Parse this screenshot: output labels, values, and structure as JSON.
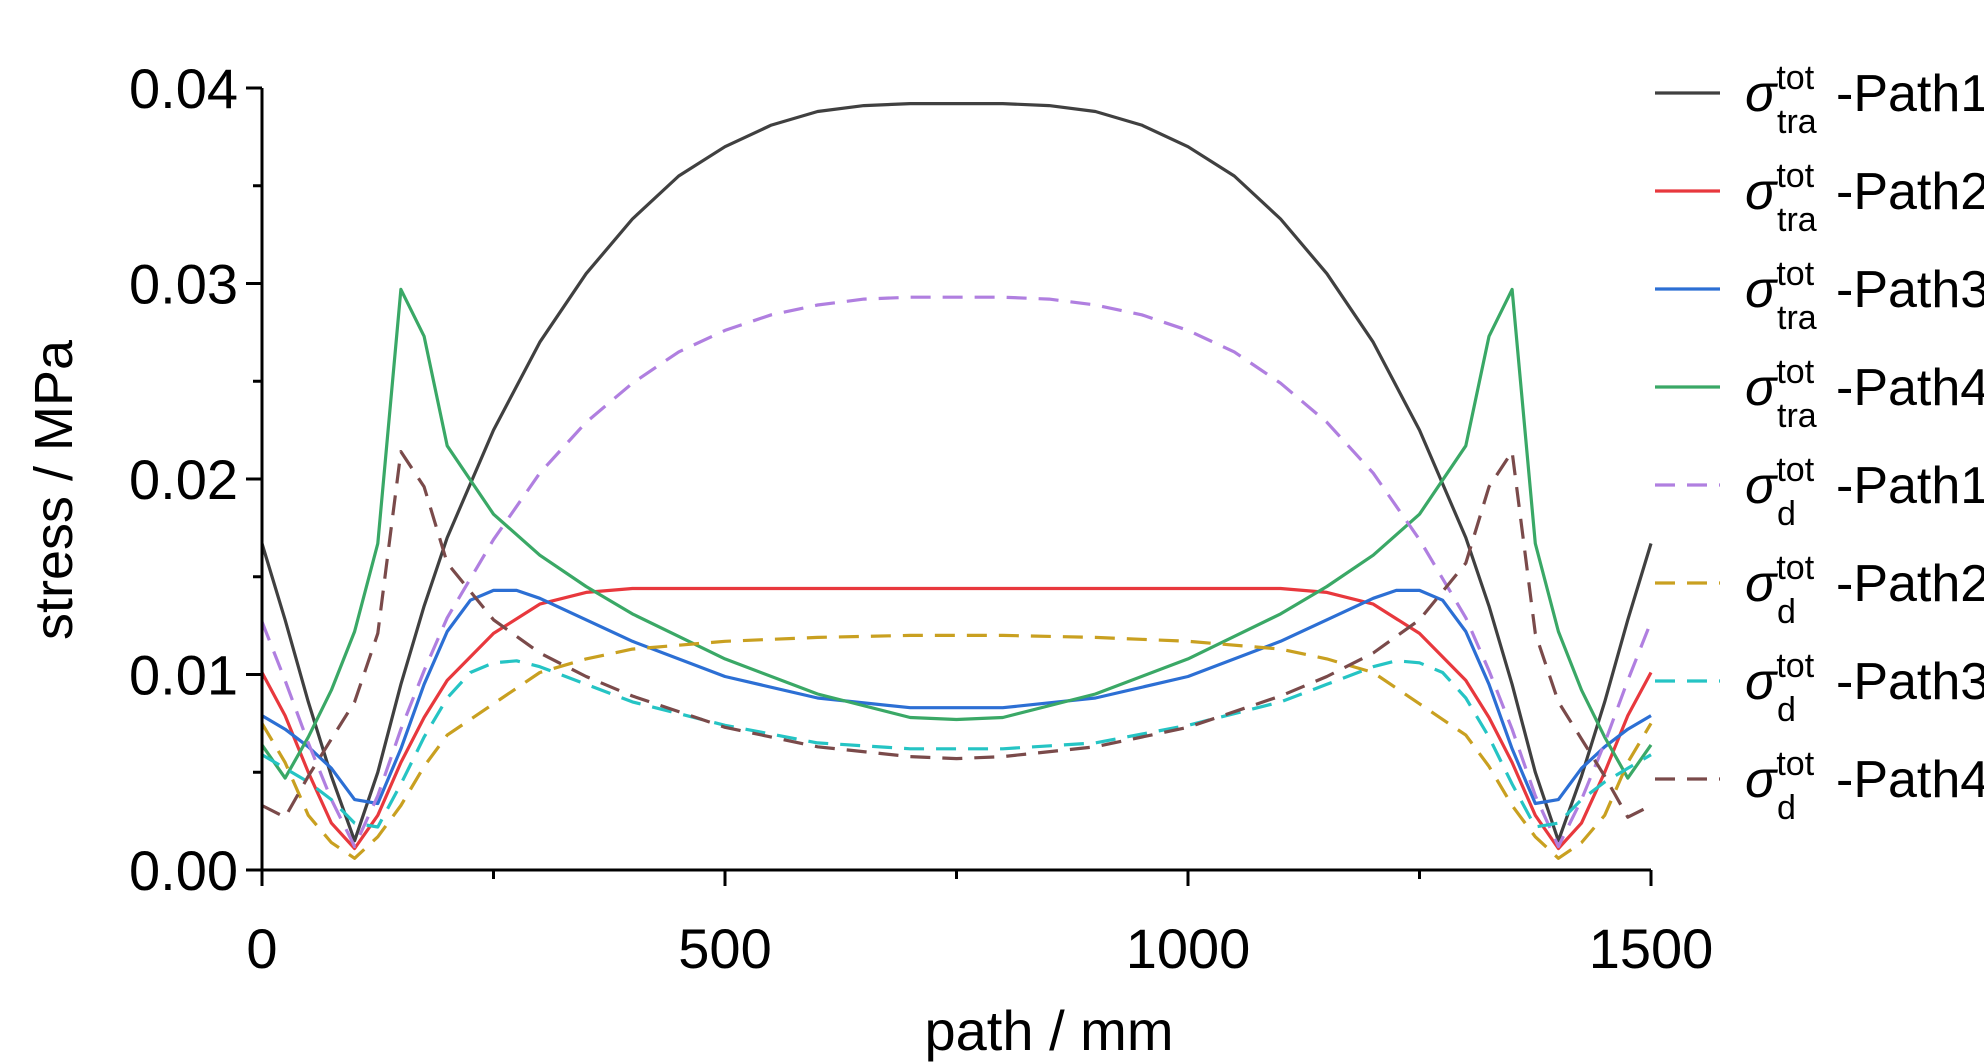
{
  "chart_data": {
    "type": "line",
    "xlabel": "path / mm",
    "ylabel": "stress / MPa",
    "xlim": [
      0,
      1500
    ],
    "ylim": [
      0,
      0.04
    ],
    "x_ticks": [
      {
        "value": 0,
        "label": "0"
      },
      {
        "value": 500,
        "label": "500"
      },
      {
        "value": 1000,
        "label": "1000"
      },
      {
        "value": 1500,
        "label": "1500"
      }
    ],
    "y_ticks": [
      {
        "value": 0,
        "label": "0.00"
      },
      {
        "value": 0.01,
        "label": "0.01"
      },
      {
        "value": 0.02,
        "label": "0.02"
      },
      {
        "value": 0.03,
        "label": "0.03"
      },
      {
        "value": 0.04,
        "label": "0.04"
      }
    ],
    "grid": false,
    "legend_position": "right",
    "series": [
      {
        "name": "σ_tra^tot-Path1",
        "symbol": "σ",
        "sup": "tot",
        "sub": "tra",
        "path": "-Path1",
        "color": "#404040",
        "dashed": false,
        "x": [
          0,
          25,
          50,
          75,
          100,
          125,
          150,
          175,
          200,
          250,
          300,
          350,
          400,
          450,
          500,
          550,
          600,
          650,
          700,
          750,
          800,
          850,
          900,
          950,
          1000,
          1050,
          1100,
          1150,
          1200,
          1250,
          1300,
          1325,
          1350,
          1375,
          1400,
          1425,
          1450,
          1475,
          1500
        ],
        "y": [
          0.0167,
          0.0128,
          0.0086,
          0.0048,
          0.0015,
          0.005,
          0.0095,
          0.0135,
          0.017,
          0.0225,
          0.027,
          0.0305,
          0.0333,
          0.0355,
          0.037,
          0.0381,
          0.0388,
          0.0391,
          0.0392,
          0.0392,
          0.0392,
          0.0391,
          0.0388,
          0.0381,
          0.037,
          0.0355,
          0.0333,
          0.0305,
          0.027,
          0.0225,
          0.017,
          0.0135,
          0.0095,
          0.005,
          0.0015,
          0.0048,
          0.0086,
          0.0128,
          0.0167
        ]
      },
      {
        "name": "σ_tra^tot-Path2",
        "symbol": "σ",
        "sup": "tot",
        "sub": "tra",
        "path": "-Path2",
        "color": "#e8383d",
        "dashed": false,
        "x": [
          0,
          25,
          50,
          75,
          100,
          125,
          150,
          175,
          200,
          250,
          300,
          350,
          400,
          500,
          600,
          700,
          750,
          800,
          900,
          1000,
          1100,
          1150,
          1200,
          1250,
          1300,
          1325,
          1350,
          1375,
          1400,
          1425,
          1450,
          1475,
          1500
        ],
        "y": [
          0.0101,
          0.0079,
          0.005,
          0.0024,
          0.0011,
          0.0028,
          0.0055,
          0.0078,
          0.0097,
          0.0121,
          0.0136,
          0.0142,
          0.0144,
          0.0144,
          0.0144,
          0.0144,
          0.0144,
          0.0144,
          0.0144,
          0.0144,
          0.0144,
          0.0142,
          0.0136,
          0.0121,
          0.0097,
          0.0078,
          0.0055,
          0.0028,
          0.0011,
          0.0024,
          0.005,
          0.0079,
          0.0101
        ]
      },
      {
        "name": "σ_tra^tot-Path3",
        "symbol": "σ",
        "sup": "tot",
        "sub": "tra",
        "path": "-Path3",
        "color": "#2c6fd4",
        "dashed": false,
        "x": [
          0,
          25,
          50,
          75,
          100,
          125,
          150,
          175,
          200,
          225,
          250,
          275,
          300,
          350,
          400,
          500,
          600,
          700,
          750,
          800,
          900,
          1000,
          1100,
          1150,
          1200,
          1225,
          1250,
          1275,
          1300,
          1325,
          1350,
          1375,
          1400,
          1425,
          1450,
          1475,
          1500
        ],
        "y": [
          0.0079,
          0.0072,
          0.0063,
          0.0052,
          0.0036,
          0.0034,
          0.0062,
          0.0095,
          0.0122,
          0.0138,
          0.0143,
          0.0143,
          0.0139,
          0.0128,
          0.0117,
          0.0099,
          0.0088,
          0.0083,
          0.0083,
          0.0083,
          0.0088,
          0.0099,
          0.0117,
          0.0128,
          0.0139,
          0.0143,
          0.0143,
          0.0138,
          0.0122,
          0.0095,
          0.0062,
          0.0034,
          0.0036,
          0.0052,
          0.0063,
          0.0072,
          0.0079
        ]
      },
      {
        "name": "σ_tra^tot-Path4",
        "symbol": "σ",
        "sup": "tot",
        "sub": "tra",
        "path": "-Path4",
        "color": "#3aa866",
        "dashed": false,
        "x": [
          0,
          25,
          50,
          75,
          100,
          125,
          150,
          175,
          200,
          250,
          300,
          350,
          400,
          500,
          600,
          700,
          750,
          800,
          900,
          1000,
          1100,
          1150,
          1200,
          1250,
          1300,
          1325,
          1350,
          1375,
          1400,
          1425,
          1450,
          1475,
          1500
        ],
        "y": [
          0.0064,
          0.0047,
          0.0068,
          0.0092,
          0.0122,
          0.0167,
          0.0297,
          0.0273,
          0.0217,
          0.0182,
          0.0161,
          0.0145,
          0.0131,
          0.0108,
          0.009,
          0.0078,
          0.0077,
          0.0078,
          0.009,
          0.0108,
          0.0131,
          0.0145,
          0.0161,
          0.0182,
          0.0217,
          0.0273,
          0.0297,
          0.0167,
          0.0122,
          0.0092,
          0.0068,
          0.0047,
          0.0064
        ]
      },
      {
        "name": "σ_d^tot-Path1",
        "symbol": "σ",
        "sup": "tot",
        "sub": "d",
        "path": "-Path1",
        "color": "#b07fe0",
        "dashed": true,
        "x": [
          0,
          25,
          50,
          75,
          100,
          125,
          150,
          175,
          200,
          250,
          300,
          350,
          400,
          450,
          500,
          550,
          600,
          650,
          700,
          750,
          800,
          850,
          900,
          950,
          1000,
          1050,
          1100,
          1150,
          1200,
          1250,
          1300,
          1325,
          1350,
          1375,
          1400,
          1425,
          1450,
          1475,
          1500
        ],
        "y": [
          0.0127,
          0.0097,
          0.0065,
          0.0036,
          0.0012,
          0.0038,
          0.0072,
          0.0102,
          0.0129,
          0.0169,
          0.0203,
          0.0229,
          0.0249,
          0.0265,
          0.0276,
          0.0284,
          0.0289,
          0.0292,
          0.0293,
          0.0293,
          0.0293,
          0.0292,
          0.0289,
          0.0284,
          0.0276,
          0.0265,
          0.0249,
          0.0229,
          0.0203,
          0.0169,
          0.0129,
          0.0102,
          0.0072,
          0.0038,
          0.0012,
          0.0036,
          0.0065,
          0.0097,
          0.0127
        ]
      },
      {
        "name": "σ_d^tot-Path2",
        "symbol": "σ",
        "sup": "tot",
        "sub": "d",
        "path": "-Path2",
        "color": "#c9a020",
        "dashed": true,
        "x": [
          0,
          25,
          50,
          75,
          100,
          125,
          150,
          175,
          200,
          250,
          300,
          350,
          400,
          500,
          600,
          700,
          750,
          800,
          900,
          1000,
          1100,
          1150,
          1200,
          1250,
          1300,
          1325,
          1350,
          1375,
          1400,
          1425,
          1450,
          1475,
          1500
        ],
        "y": [
          0.0075,
          0.0055,
          0.0028,
          0.0014,
          0.0006,
          0.0017,
          0.0033,
          0.0053,
          0.0069,
          0.0085,
          0.0101,
          0.0108,
          0.0113,
          0.0117,
          0.0119,
          0.012,
          0.012,
          0.012,
          0.0119,
          0.0117,
          0.0113,
          0.0108,
          0.0101,
          0.0085,
          0.0069,
          0.0053,
          0.0033,
          0.0017,
          0.0006,
          0.0014,
          0.0028,
          0.0055,
          0.0075
        ]
      },
      {
        "name": "σ_d^tot-Path3",
        "symbol": "σ",
        "sup": "tot",
        "sub": "d",
        "path": "-Path3",
        "color": "#25c4c4",
        "dashed": true,
        "x": [
          0,
          25,
          50,
          75,
          100,
          125,
          150,
          175,
          200,
          225,
          250,
          275,
          300,
          350,
          400,
          500,
          600,
          700,
          750,
          800,
          900,
          1000,
          1100,
          1150,
          1200,
          1225,
          1250,
          1275,
          1300,
          1325,
          1350,
          1375,
          1400,
          1425,
          1450,
          1475,
          1500
        ],
        "y": [
          0.0059,
          0.0052,
          0.0045,
          0.0036,
          0.0024,
          0.0022,
          0.0044,
          0.0068,
          0.0088,
          0.0101,
          0.0106,
          0.0107,
          0.0104,
          0.0095,
          0.0086,
          0.0074,
          0.0065,
          0.0062,
          0.0062,
          0.0062,
          0.0065,
          0.0074,
          0.0086,
          0.0095,
          0.0104,
          0.0107,
          0.0106,
          0.0101,
          0.0088,
          0.0068,
          0.0044,
          0.0022,
          0.0024,
          0.0036,
          0.0045,
          0.0052,
          0.0059
        ]
      },
      {
        "name": "σ_d^tot-Path4",
        "symbol": "σ",
        "sup": "tot",
        "sub": "d",
        "path": "-Path4",
        "color": "#7a4a4a",
        "dashed": true,
        "x": [
          0,
          25,
          50,
          75,
          100,
          125,
          150,
          175,
          200,
          250,
          300,
          350,
          400,
          500,
          600,
          700,
          750,
          800,
          900,
          1000,
          1100,
          1150,
          1200,
          1250,
          1300,
          1325,
          1350,
          1375,
          1400,
          1425,
          1450,
          1475,
          1500
        ],
        "y": [
          0.0033,
          0.0027,
          0.0048,
          0.0067,
          0.0086,
          0.0121,
          0.0214,
          0.0196,
          0.0157,
          0.0128,
          0.0111,
          0.0099,
          0.0089,
          0.0073,
          0.0063,
          0.0058,
          0.0057,
          0.0058,
          0.0063,
          0.0073,
          0.0089,
          0.0099,
          0.0111,
          0.0128,
          0.0157,
          0.0196,
          0.0214,
          0.0121,
          0.0086,
          0.0067,
          0.0048,
          0.0027,
          0.0033
        ]
      }
    ]
  }
}
